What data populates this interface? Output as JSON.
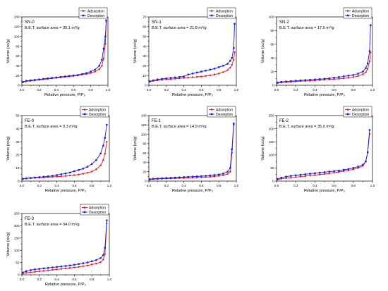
{
  "style": {
    "adsorption_color": "#e8141c",
    "desorption_color": "#1a1adf",
    "axis_color": "#000000"
  },
  "chart_data": [
    {
      "type": "line",
      "sample": "SN-0",
      "bet_text": "B.E.T. surface area = 35.1 m²/g",
      "xlabel": "Relative pressure, P/P₀",
      "ylabel": "Volume (cc/g)",
      "xlim": [
        0,
        1.0
      ],
      "ylim": [
        0,
        140
      ],
      "xticks": [
        "0.0",
        "0.2",
        "0.4",
        "0.6",
        "0.8",
        "1.0"
      ],
      "yticks": [
        "0",
        "20",
        "40",
        "60",
        "80",
        "100",
        "120",
        "140"
      ],
      "legend": [
        "Adsorption",
        "Desorption"
      ],
      "legend_position": "top-right",
      "series": [
        {
          "name": "Adsorption",
          "x": [
            0.01,
            0.05,
            0.1,
            0.15,
            0.2,
            0.25,
            0.3,
            0.35,
            0.4,
            0.45,
            0.5,
            0.55,
            0.6,
            0.65,
            0.7,
            0.75,
            0.8,
            0.85,
            0.9,
            0.93,
            0.95,
            0.97,
            0.98
          ],
          "y": [
            6,
            8,
            9,
            10,
            11,
            12,
            13,
            14,
            15,
            16,
            17,
            18,
            19,
            20,
            22,
            23,
            25,
            28,
            33,
            40,
            55,
            85,
            130
          ]
        },
        {
          "name": "Desorption",
          "x": [
            0.98,
            0.97,
            0.95,
            0.93,
            0.9,
            0.85,
            0.8,
            0.75,
            0.7,
            0.65,
            0.6,
            0.55,
            0.5,
            0.45,
            0.4,
            0.35,
            0.3,
            0.25,
            0.2,
            0.15,
            0.1,
            0.05,
            0.01
          ],
          "y": [
            133,
            100,
            75,
            52,
            40,
            32,
            28,
            25,
            23,
            21,
            20,
            19,
            18,
            17,
            16,
            15,
            14,
            13,
            12,
            11,
            10,
            9,
            7
          ]
        }
      ]
    },
    {
      "type": "line",
      "sample": "SN-1",
      "bet_text": "B.E.T. surface area = 21.8 m²/g",
      "xlabel": "Relative pressure, P/P₀",
      "ylabel": "Volume (cc/g)",
      "xlim": [
        0,
        1.0
      ],
      "ylim": [
        0,
        70
      ],
      "xticks": [
        "0.0",
        "0.2",
        "0.4",
        "0.6",
        "0.8",
        "1.0"
      ],
      "yticks": [
        "0",
        "10",
        "20",
        "30",
        "40",
        "50",
        "60",
        "70"
      ],
      "legend": [
        "Adsorption",
        "Desorption"
      ],
      "legend_position": "top-right",
      "series": [
        {
          "name": "Adsorption",
          "x": [
            0.01,
            0.05,
            0.1,
            0.15,
            0.2,
            0.25,
            0.3,
            0.35,
            0.4,
            0.45,
            0.5,
            0.55,
            0.6,
            0.65,
            0.7,
            0.75,
            0.8,
            0.85,
            0.9,
            0.93,
            0.95,
            0.97,
            0.98
          ],
          "y": [
            3.5,
            4.5,
            5,
            5.5,
            6,
            6.3,
            6.7,
            7,
            7.5,
            7.8,
            8.2,
            8.6,
            9,
            9.5,
            10.2,
            11,
            12,
            13.5,
            15.5,
            18,
            21,
            26,
            34
          ]
        },
        {
          "name": "Desorption",
          "x": [
            0.98,
            0.97,
            0.95,
            0.93,
            0.9,
            0.85,
            0.8,
            0.75,
            0.7,
            0.65,
            0.6,
            0.55,
            0.5,
            0.45,
            0.4,
            0.35,
            0.3,
            0.25,
            0.2,
            0.15,
            0.1,
            0.05,
            0.01
          ],
          "y": [
            63,
            38,
            28,
            25,
            22,
            20,
            18.5,
            17,
            16,
            15,
            14,
            13,
            12,
            11,
            9,
            8.5,
            8,
            7.5,
            7,
            6.5,
            6,
            5,
            4
          ]
        }
      ]
    },
    {
      "type": "line",
      "sample": "SN-2",
      "bet_text": "B.E.T. surface area = 17.5 m²/g",
      "xlabel": "Relative pressure, P/P₀",
      "ylabel": "Volume (cc/g)",
      "xlim": [
        0,
        1.0
      ],
      "ylim": [
        0,
        100
      ],
      "xticks": [
        "0.0",
        "0.2",
        "0.4",
        "0.6",
        "0.8",
        "1.0"
      ],
      "yticks": [
        "0",
        "20",
        "40",
        "60",
        "80",
        "100"
      ],
      "legend": [
        "Adsorption",
        "Desorption"
      ],
      "legend_position": "top-right",
      "series": [
        {
          "name": "Adsorption",
          "x": [
            0.01,
            0.05,
            0.1,
            0.15,
            0.2,
            0.25,
            0.3,
            0.35,
            0.4,
            0.45,
            0.5,
            0.55,
            0.6,
            0.65,
            0.7,
            0.75,
            0.8,
            0.85,
            0.9,
            0.93,
            0.95,
            0.97,
            0.98
          ],
          "y": [
            3,
            4,
            4.5,
            5,
            5.5,
            6,
            6.3,
            6.7,
            7,
            7.5,
            8,
            8.5,
            9,
            9.5,
            10,
            11,
            12,
            13.5,
            16,
            19,
            24,
            35,
            48
          ]
        },
        {
          "name": "Desorption",
          "x": [
            0.98,
            0.97,
            0.95,
            0.93,
            0.9,
            0.85,
            0.8,
            0.75,
            0.7,
            0.65,
            0.6,
            0.55,
            0.5,
            0.45,
            0.4,
            0.35,
            0.3,
            0.25,
            0.2,
            0.15,
            0.1,
            0.05,
            0.01
          ],
          "y": [
            88,
            50,
            32,
            25,
            20,
            17,
            15,
            14,
            13,
            12,
            11,
            10,
            9.5,
            9,
            8.5,
            8,
            7.5,
            7,
            6.5,
            6,
            5.5,
            5,
            4
          ]
        }
      ]
    },
    {
      "type": "line",
      "sample": "FE-0",
      "bet_text": "B.E.T. surface area = 9.3 m²/g",
      "xlabel": "Relative pressure, P/P₀",
      "ylabel": "Volume (cc/g)",
      "xlim": [
        0,
        1.0
      ],
      "ylim": [
        0,
        50
      ],
      "xticks": [
        "0.0",
        "0.2",
        "0.4",
        "0.6",
        "0.8",
        "1.0"
      ],
      "yticks": [
        "0",
        "10",
        "20",
        "30",
        "40",
        "50"
      ],
      "legend": [
        "Adsorption",
        "Desorption"
      ],
      "legend_position": "top-right",
      "series": [
        {
          "name": "Adsorption",
          "x": [
            0.01,
            0.05,
            0.1,
            0.15,
            0.2,
            0.25,
            0.3,
            0.35,
            0.4,
            0.45,
            0.5,
            0.55,
            0.6,
            0.65,
            0.7,
            0.75,
            0.8,
            0.85,
            0.9,
            0.93,
            0.95,
            0.97
          ],
          "y": [
            1.5,
            2,
            2.2,
            2.4,
            2.6,
            2.8,
            3,
            3.2,
            3.4,
            3.6,
            3.9,
            4.2,
            4.6,
            5,
            5.6,
            6.3,
            7.3,
            9,
            12,
            16,
            21,
            30
          ]
        },
        {
          "name": "Desorption",
          "x": [
            0.97,
            0.95,
            0.93,
            0.9,
            0.85,
            0.8,
            0.75,
            0.7,
            0.65,
            0.6,
            0.55,
            0.5,
            0.45,
            0.4,
            0.35,
            0.3,
            0.25,
            0.2,
            0.15,
            0.1,
            0.05,
            0.01
          ],
          "y": [
            43,
            33,
            27,
            21,
            16,
            13,
            11,
            9.5,
            8.5,
            7.5,
            6.5,
            5.8,
            5.2,
            4.6,
            4,
            3.6,
            3.3,
            3,
            2.7,
            2.4,
            2.1,
            1.7
          ]
        }
      ]
    },
    {
      "type": "line",
      "sample": "FE-1",
      "bet_text": "B.E.T. surface area = 14.9 m²/g",
      "xlabel": "Relative pressure, P/P₀",
      "ylabel": "Volume (cc/g)",
      "xlim": [
        0,
        1.0
      ],
      "ylim": [
        0,
        140
      ],
      "xticks": [
        "0.0",
        "0.2",
        "0.4",
        "0.6",
        "0.8",
        "1.0"
      ],
      "yticks": [
        "0",
        "20",
        "40",
        "60",
        "80",
        "100",
        "120",
        "140"
      ],
      "legend": [
        "Adsorption",
        "Desorption"
      ],
      "legend_position": "top-right",
      "series": [
        {
          "name": "Adsorption",
          "x": [
            0.01,
            0.05,
            0.1,
            0.15,
            0.2,
            0.25,
            0.3,
            0.35,
            0.4,
            0.45,
            0.5,
            0.55,
            0.6,
            0.65,
            0.7,
            0.75,
            0.8,
            0.85,
            0.9,
            0.93,
            0.95,
            0.97
          ],
          "y": [
            3,
            4,
            4.5,
            5,
            5.3,
            5.6,
            6,
            6.3,
            6.6,
            7,
            7.3,
            7.7,
            8,
            8.5,
            9,
            10,
            11,
            12.5,
            15,
            20,
            60,
            120
          ]
        },
        {
          "name": "Desorption",
          "x": [
            0.97,
            0.95,
            0.93,
            0.9,
            0.85,
            0.8,
            0.75,
            0.7,
            0.65,
            0.6,
            0.55,
            0.5,
            0.45,
            0.4,
            0.35,
            0.3,
            0.25,
            0.2,
            0.15,
            0.1,
            0.05,
            0.01
          ],
          "y": [
            123,
            68,
            28,
            20,
            16,
            14,
            13,
            12,
            11,
            10.5,
            10,
            9.5,
            9,
            8.5,
            8,
            7.5,
            7,
            6.5,
            6,
            5.5,
            5,
            4
          ]
        }
      ]
    },
    {
      "type": "line",
      "sample": "FE-2",
      "bet_text": "B.E.T. surface area = 35.0 m²/g",
      "xlabel": "Relative pressure, P/P₀",
      "ylabel": "Volume (cc/g)",
      "xlim": [
        0,
        1.0
      ],
      "ylim": [
        0,
        250
      ],
      "xticks": [
        "0.0",
        "0.2",
        "0.4",
        "0.6",
        "0.8",
        "1.0"
      ],
      "yticks": [
        "0",
        "50",
        "100",
        "150",
        "200",
        "250"
      ],
      "legend": [
        "Adsorption",
        "Desorption"
      ],
      "legend_position": "top-right",
      "series": [
        {
          "name": "Adsorption",
          "x": [
            0.01,
            0.05,
            0.1,
            0.15,
            0.2,
            0.25,
            0.3,
            0.35,
            0.4,
            0.45,
            0.5,
            0.55,
            0.6,
            0.65,
            0.7,
            0.75,
            0.8,
            0.85,
            0.9,
            0.93,
            0.95,
            0.97
          ],
          "y": [
            6,
            9,
            11,
            13,
            15,
            17,
            19,
            21,
            23,
            25,
            27,
            29,
            32,
            35,
            38,
            41,
            45,
            50,
            58,
            75,
            110,
            180
          ]
        },
        {
          "name": "Desorption",
          "x": [
            0.97,
            0.95,
            0.93,
            0.9,
            0.85,
            0.8,
            0.75,
            0.7,
            0.65,
            0.6,
            0.55,
            0.5,
            0.45,
            0.4,
            0.35,
            0.3,
            0.25,
            0.2,
            0.15,
            0.1,
            0.05,
            0.01
          ],
          "y": [
            195,
            110,
            75,
            62,
            55,
            50,
            46,
            43,
            40,
            38,
            36,
            34,
            32,
            30,
            28,
            26,
            24,
            22,
            20,
            17,
            13,
            8
          ]
        }
      ]
    },
    {
      "type": "line",
      "sample": "FE-3",
      "bet_text": "B.E.T. surface area = 34.0 m²/g",
      "xlabel": "Relative pressure, P/P₀",
      "ylabel": "Volume (cc/g)",
      "xlim": [
        0,
        1.0
      ],
      "ylim": [
        0,
        250
      ],
      "xticks": [
        "0.0",
        "0.2",
        "0.4",
        "0.6",
        "0.8",
        "1.0"
      ],
      "yticks": [
        "0",
        "50",
        "100",
        "150",
        "200",
        "250"
      ],
      "legend": [
        "Adsorption",
        "Desorption"
      ],
      "legend_position": "top-right",
      "series": [
        {
          "name": "Adsorption",
          "x": [
            0.01,
            0.05,
            0.1,
            0.15,
            0.2,
            0.25,
            0.3,
            0.35,
            0.4,
            0.45,
            0.5,
            0.55,
            0.6,
            0.65,
            0.7,
            0.75,
            0.8,
            0.85,
            0.9,
            0.93,
            0.95,
            0.97
          ],
          "y": [
            5,
            8,
            10,
            12,
            14,
            16,
            18,
            20,
            22,
            24,
            26,
            28,
            30,
            32,
            35,
            38,
            42,
            46,
            52,
            62,
            85,
            210
          ]
        },
        {
          "name": "Desorption",
          "x": [
            0.97,
            0.95,
            0.93,
            0.9,
            0.85,
            0.8,
            0.75,
            0.7,
            0.65,
            0.6,
            0.55,
            0.5,
            0.45,
            0.4,
            0.35,
            0.3,
            0.25,
            0.2,
            0.15,
            0.1,
            0.05,
            0.01
          ],
          "y": [
            222,
            110,
            80,
            68,
            60,
            55,
            50,
            47,
            44,
            41,
            38,
            36,
            34,
            32,
            30,
            28,
            26,
            24,
            22,
            19,
            15,
            9
          ]
        }
      ]
    }
  ]
}
